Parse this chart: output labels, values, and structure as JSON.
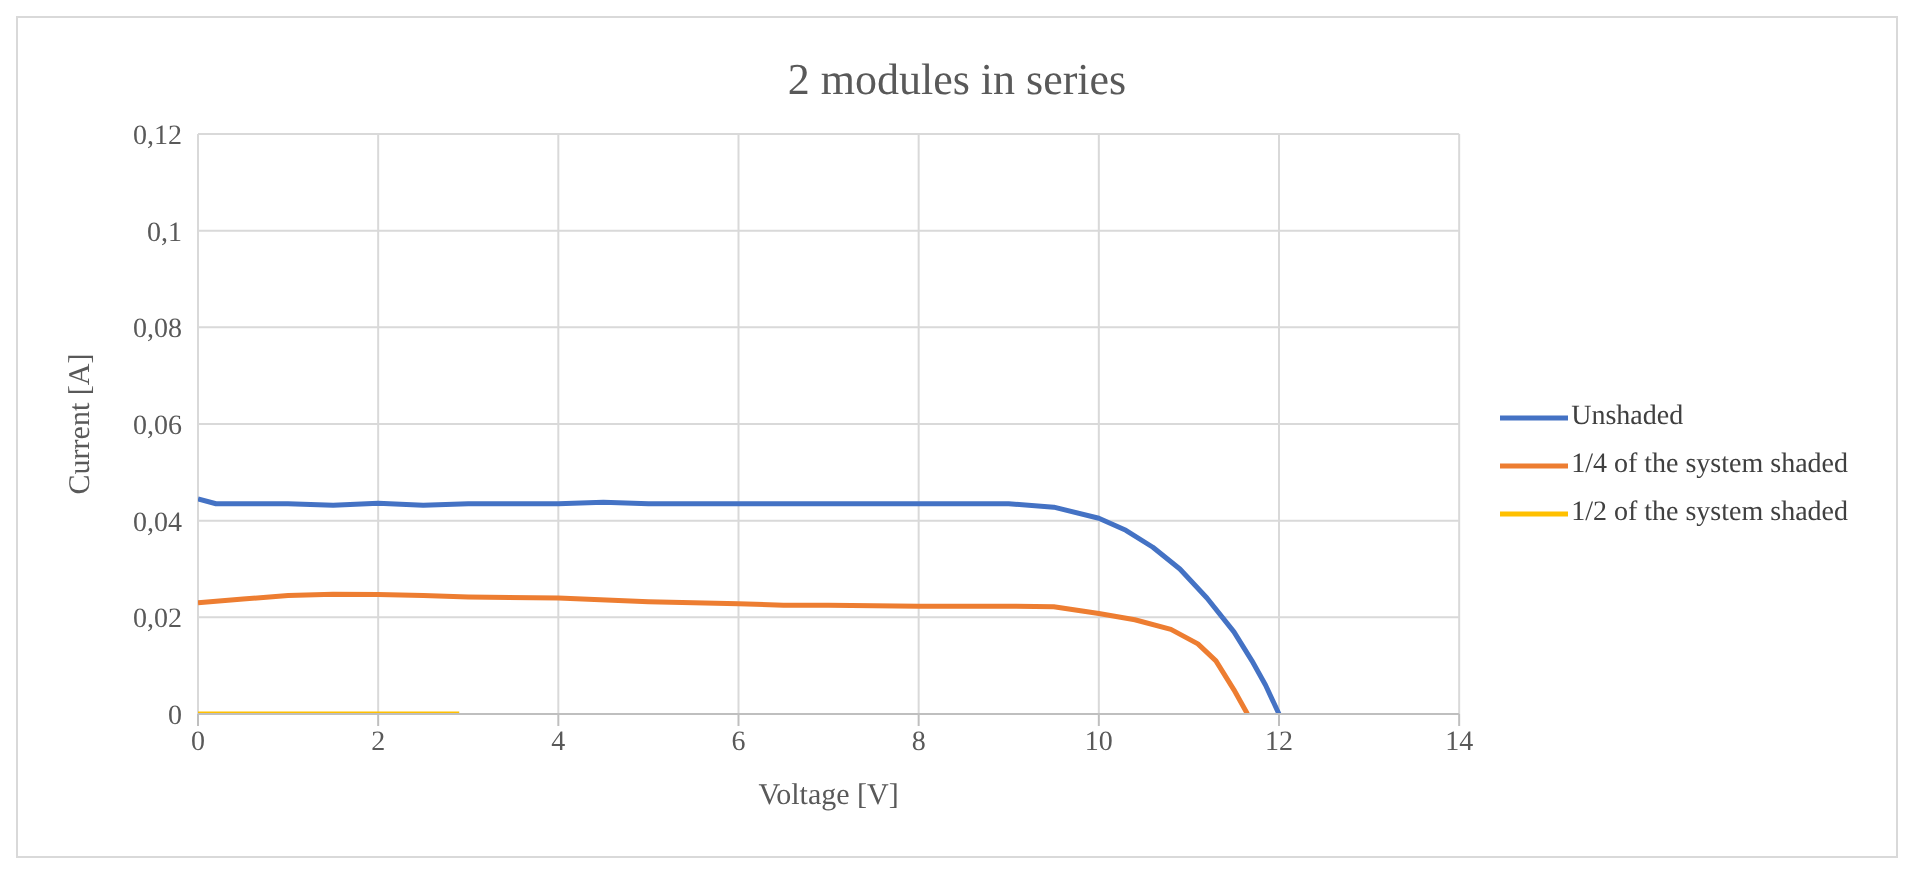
{
  "chart_data": {
    "type": "line",
    "title": "2 modules in series",
    "xlabel": "Voltage [V]",
    "ylabel": "Current [A]",
    "xlim": [
      0,
      14
    ],
    "xticks": [
      0,
      2,
      4,
      6,
      8,
      10,
      12,
      14
    ],
    "ylim": [
      0,
      0.12
    ],
    "yticks": [
      0,
      {
        "value": 0.02,
        "label": "0,02"
      },
      {
        "value": 0.04,
        "label": "0,04"
      },
      {
        "value": 0.06,
        "label": "0,06"
      },
      {
        "value": 0.08,
        "label": "0,08"
      },
      {
        "value": 0.1,
        "label": "0,1"
      },
      {
        "value": 0.12,
        "label": "0,12"
      }
    ],
    "grid": true,
    "legend": "right",
    "marker": "none",
    "line_style": "solid",
    "series": [
      {
        "name": "Unshaded",
        "color": "#4472c4",
        "x": [
          0,
          0.2,
          0.5,
          1,
          1.5,
          2,
          2.5,
          3,
          4,
          4.5,
          5,
          6,
          7,
          8,
          9,
          9.5,
          10,
          10.3,
          10.6,
          10.9,
          11.2,
          11.5,
          11.7,
          11.85,
          12
        ],
        "values": [
          0.0445,
          0.0435,
          0.0435,
          0.0435,
          0.0432,
          0.0436,
          0.0432,
          0.0435,
          0.0435,
          0.0438,
          0.0435,
          0.0435,
          0.0435,
          0.0435,
          0.0435,
          0.0428,
          0.0405,
          0.038,
          0.0345,
          0.03,
          0.024,
          0.017,
          0.011,
          0.006,
          0
        ]
      },
      {
        "name": "1/4 of the system shaded",
        "color": "#ed7d31",
        "x": [
          0,
          0.5,
          1,
          1.5,
          2,
          2.5,
          3,
          4,
          5,
          6,
          6.5,
          7,
          8,
          9,
          9.5,
          10,
          10.4,
          10.8,
          11.1,
          11.3,
          11.5,
          11.65
        ],
        "values": [
          0.023,
          0.0238,
          0.0245,
          0.0248,
          0.0247,
          0.0245,
          0.0242,
          0.024,
          0.0232,
          0.0228,
          0.0225,
          0.0225,
          0.0223,
          0.0223,
          0.0222,
          0.0208,
          0.0195,
          0.0175,
          0.0145,
          0.011,
          0.005,
          0
        ]
      },
      {
        "name": "1/2 of the system shaded",
        "color": "#ffc000",
        "x": [
          0,
          1,
          2,
          2.9
        ],
        "values": [
          0,
          0,
          0,
          0
        ]
      }
    ]
  }
}
